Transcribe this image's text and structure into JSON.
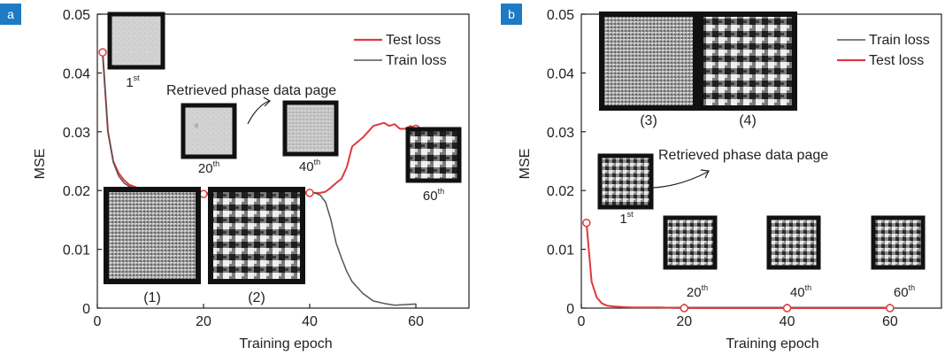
{
  "colors": {
    "test_loss": "#e0393e",
    "train_loss": "#555555",
    "panel_tag": "#1f7ac4"
  },
  "chart_data": [
    {
      "panel": "a",
      "type": "line",
      "xlabel": "Training epoch",
      "ylabel": "MSE",
      "xlim": [
        0,
        70
      ],
      "ylim": [
        0,
        0.05
      ],
      "xticks": [
        "0",
        "20",
        "40",
        "60"
      ],
      "yticks": [
        "0",
        "0.01",
        "0.02",
        "0.03",
        "0.04",
        "0.05"
      ],
      "legend": "top-right",
      "series": [
        {
          "name": "Test loss",
          "color": "#e0393e",
          "x": [
            1,
            2,
            3,
            4,
            5,
            6,
            8,
            10,
            12,
            15,
            18,
            20,
            25,
            30,
            35,
            40,
            42,
            43,
            44,
            45,
            46,
            47,
            48,
            50,
            52,
            54,
            55,
            56,
            57,
            58,
            59,
            60
          ],
          "y": [
            0.0435,
            0.03,
            0.025,
            0.023,
            0.0218,
            0.021,
            0.0203,
            0.0199,
            0.0197,
            0.0196,
            0.0195,
            0.0194,
            0.0194,
            0.0194,
            0.0195,
            0.0196,
            0.0196,
            0.0198,
            0.0205,
            0.0213,
            0.022,
            0.024,
            0.0275,
            0.029,
            0.031,
            0.0315,
            0.031,
            0.0313,
            0.0305,
            0.0305,
            0.031,
            0.0305
          ],
          "markers_at": [
            1,
            20,
            40,
            60
          ]
        },
        {
          "name": "Train loss",
          "color": "#555555",
          "x": [
            1,
            2,
            3,
            4,
            5,
            6,
            8,
            10,
            12,
            15,
            18,
            20,
            25,
            30,
            35,
            40,
            41,
            42,
            43,
            44,
            45,
            46,
            47,
            48,
            50,
            52,
            54,
            56,
            58,
            60
          ],
          "y": [
            0.0435,
            0.03,
            0.0248,
            0.0225,
            0.0213,
            0.0207,
            0.0201,
            0.0198,
            0.0197,
            0.0196,
            0.0196,
            0.0196,
            0.0196,
            0.0197,
            0.0197,
            0.0197,
            0.0196,
            0.0192,
            0.018,
            0.015,
            0.011,
            0.0085,
            0.0062,
            0.0045,
            0.0025,
            0.0012,
            0.0008,
            0.0005,
            0.0006,
            0.0007
          ]
        }
      ],
      "annotations": [
        {
          "text": "Retrieved phase data page"
        },
        {
          "text": "1",
          "sup": "st"
        },
        {
          "text": "20",
          "sup": "th"
        },
        {
          "text": "40",
          "sup": "th"
        },
        {
          "text": "60",
          "sup": "th"
        },
        {
          "text": "(1)"
        },
        {
          "text": "(2)"
        }
      ]
    },
    {
      "panel": "b",
      "type": "line",
      "xlabel": "Training epoch",
      "ylabel": "MSE",
      "xlim": [
        0,
        70
      ],
      "ylim": [
        0,
        0.05
      ],
      "xticks": [
        "0",
        "20",
        "40",
        "60"
      ],
      "yticks": [
        "0",
        "0.01",
        "0.02",
        "0.03",
        "0.04",
        "0.05"
      ],
      "legend": "top-right",
      "series": [
        {
          "name": "Train loss",
          "color": "#555555",
          "x": [
            1,
            2,
            3,
            4,
            5,
            6,
            8,
            10,
            15,
            20,
            25,
            30,
            40,
            50,
            60
          ],
          "y": [
            0.0145,
            0.0045,
            0.0018,
            0.0008,
            0.0004,
            0.0003,
            0.0002,
            0.0001,
            0.0001,
            0.0001,
            0.0001,
            0.0001,
            0.0001,
            0.0001,
            0.0001
          ]
        },
        {
          "name": "Test loss",
          "color": "#e0393e",
          "x": [
            1,
            2,
            3,
            4,
            5,
            6,
            8,
            10,
            15,
            20,
            25,
            30,
            40,
            50,
            60
          ],
          "y": [
            0.0145,
            0.0045,
            0.0018,
            0.0008,
            0.0004,
            0.0003,
            0.0002,
            0.0001,
            0.0001,
            0.0,
            0.0,
            0.0,
            0.0,
            0.0,
            0.0
          ],
          "markers_at": [
            1,
            20,
            40,
            60
          ]
        }
      ],
      "annotations": [
        {
          "text": "Retrieved phase data page"
        },
        {
          "text": "1",
          "sup": "st"
        },
        {
          "text": "20",
          "sup": "th"
        },
        {
          "text": "40",
          "sup": "th"
        },
        {
          "text": "60",
          "sup": "th"
        },
        {
          "text": "(3)"
        },
        {
          "text": "(4)"
        }
      ]
    }
  ]
}
